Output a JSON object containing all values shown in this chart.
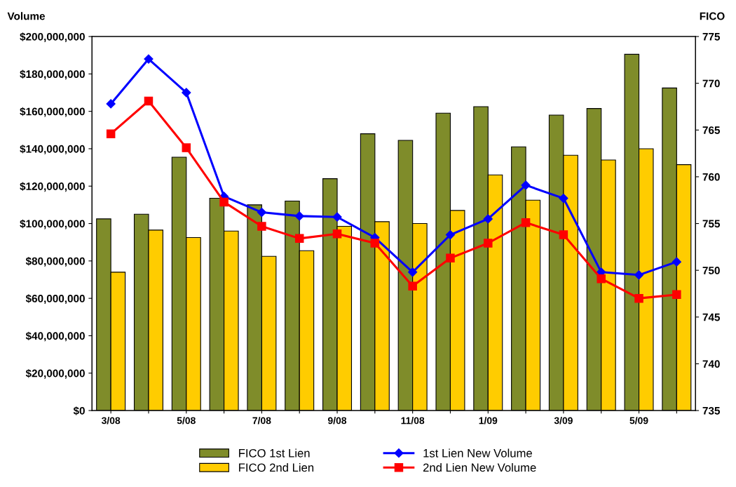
{
  "chart_data": {
    "type": "bar",
    "ylabel": "Volume",
    "y2label": "FICO",
    "categories": [
      "3/08",
      null,
      "5/08",
      null,
      "7/08",
      null,
      "9/08",
      null,
      "11/08",
      null,
      "1/09",
      null,
      "3/09",
      null,
      "5/09",
      null
    ],
    "series": [
      {
        "name": "FICO 1st Lien",
        "axis": "y2",
        "color": "#7f8c2a",
        "values": [
          755.5,
          756.0,
          762.1,
          757.7,
          757.0,
          757.4,
          759.8,
          764.6,
          763.9,
          766.8,
          767.5,
          763.2,
          766.6,
          767.3,
          773.1,
          769.5
        ]
      },
      {
        "name": "FICO 2nd Lien",
        "axis": "y2",
        "color": "#ffcc00",
        "values": [
          749.8,
          754.3,
          753.5,
          754.2,
          751.5,
          752.1,
          754.7,
          755.2,
          755.0,
          756.4,
          760.2,
          757.5,
          762.3,
          761.8,
          763.0,
          761.3
        ]
      },
      {
        "name": "1st Lien New Volume",
        "type": "line",
        "axis": "y",
        "color": "#0000ff",
        "marker": "diamond",
        "values": [
          164000000,
          188000000,
          170000000,
          114500000,
          106000000,
          104000000,
          103500000,
          92500000,
          74000000,
          94000000,
          102500000,
          120500000,
          113500000,
          74000000,
          72500000,
          79500000
        ]
      },
      {
        "name": "2nd Lien New Volume",
        "type": "line",
        "axis": "y",
        "color": "#ff0000",
        "marker": "square",
        "values": [
          148000000,
          165500000,
          140500000,
          111500000,
          98500000,
          92000000,
          94500000,
          89500000,
          66500000,
          81500000,
          89500000,
          100500000,
          94000000,
          70500000,
          60000000,
          62000000
        ]
      }
    ],
    "ylim": [
      0,
      200000000
    ],
    "yticks": [
      {
        "value": 0,
        "label": "$0"
      },
      {
        "value": 20000000,
        "label": "$20,000,000"
      },
      {
        "value": 40000000,
        "label": "$40,000,000"
      },
      {
        "value": 60000000,
        "label": "$60,000,000"
      },
      {
        "value": 80000000,
        "label": "$80,000,000"
      },
      {
        "value": 100000000,
        "label": "$100,000,000"
      },
      {
        "value": 120000000,
        "label": "$120,000,000"
      },
      {
        "value": 140000000,
        "label": "$140,000,000"
      },
      {
        "value": 160000000,
        "label": "$160,000,000"
      },
      {
        "value": 180000000,
        "label": "$180,000,000"
      },
      {
        "value": 200000000,
        "label": "$200,000,000"
      }
    ],
    "y2lim": [
      735,
      775
    ],
    "y2ticks": [
      735,
      740,
      745,
      750,
      755,
      760,
      765,
      770,
      775
    ],
    "grid": false,
    "legend": "bottom",
    "line_style": "solid"
  }
}
